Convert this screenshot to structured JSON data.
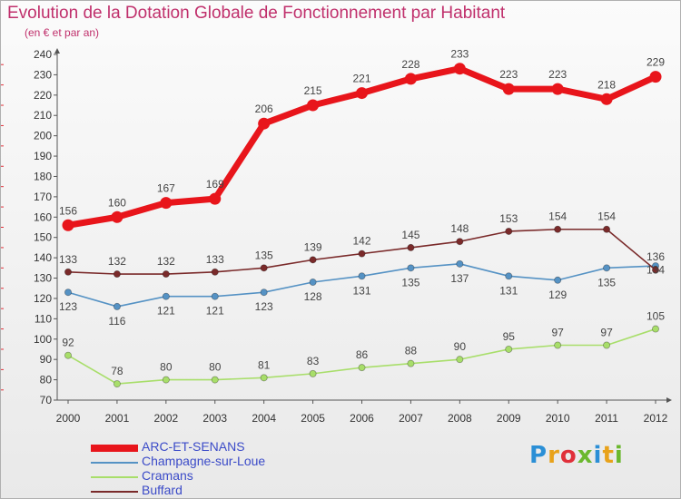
{
  "chart_data": {
    "type": "line",
    "title": "Evolution de la Dotation Globale de Fonctionnement par Habitant",
    "subtitle": "(en € et par an)",
    "xlabel": "",
    "ylabel": "",
    "x": [
      "2000",
      "2001",
      "2002",
      "2003",
      "2004",
      "2005",
      "2006",
      "2007",
      "2008",
      "2009",
      "2010",
      "2011",
      "2012"
    ],
    "ylim": [
      70,
      240
    ],
    "yticks": [
      70,
      80,
      90,
      100,
      110,
      120,
      130,
      140,
      150,
      160,
      170,
      180,
      190,
      200,
      210,
      220,
      230,
      240
    ],
    "grid": false,
    "legend": "bottom-left",
    "series": [
      {
        "name": "ARC-ET-SENANS",
        "color": "#e8151b",
        "values": [
          156,
          160,
          167,
          169,
          206,
          215,
          221,
          228,
          233,
          223,
          223,
          218,
          229
        ]
      },
      {
        "name": "Champagne-sur-Loue",
        "color": "#5592c4",
        "values": [
          123,
          116,
          121,
          121,
          123,
          128,
          131,
          135,
          137,
          131,
          129,
          135,
          136
        ]
      },
      {
        "name": "Cramans",
        "color": "#a8de6a",
        "values": [
          92,
          78,
          80,
          80,
          81,
          83,
          86,
          88,
          90,
          95,
          97,
          97,
          105
        ]
      },
      {
        "name": "Buffard",
        "color": "#7a2a2a",
        "values": [
          133,
          132,
          132,
          133,
          135,
          139,
          142,
          145,
          148,
          153,
          154,
          154,
          134
        ]
      }
    ]
  },
  "logo": {
    "text": "Proxiti"
  }
}
